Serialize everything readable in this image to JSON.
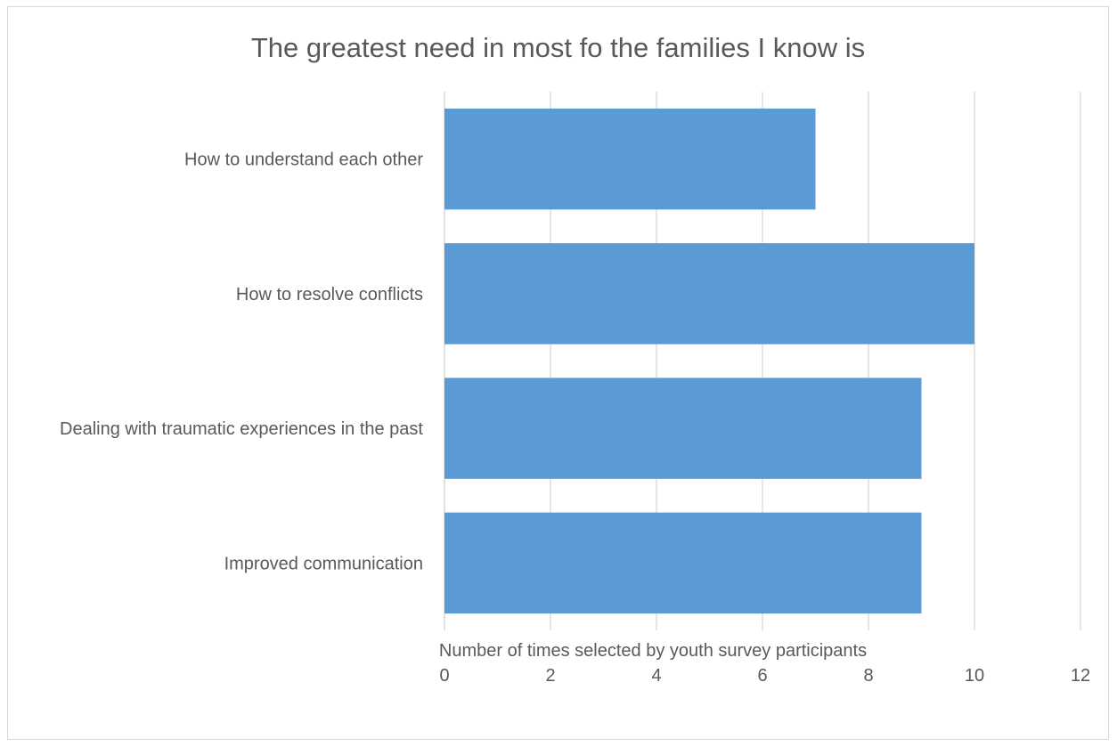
{
  "chart_data": {
    "type": "bar",
    "orientation": "horizontal",
    "title": "The greatest need in most fo the families I know is",
    "xlabel": "Number of times selected by youth survey participants",
    "ylabel": "",
    "categories": [
      "How to understand each other",
      "How to resolve conflicts",
      "Dealing with traumatic experiences in the past",
      "Improved communication"
    ],
    "values": [
      7,
      10,
      9,
      9
    ],
    "xlim": [
      0,
      12
    ],
    "xticks": [
      "0",
      "2",
      "4",
      "6",
      "8",
      "10",
      "12"
    ],
    "grid": "vertical",
    "legend": "none",
    "colors": {
      "bar": "#5b9bd5",
      "grid": "#d9d9d9",
      "text": "#595959",
      "border": "#d9d9d9"
    }
  }
}
